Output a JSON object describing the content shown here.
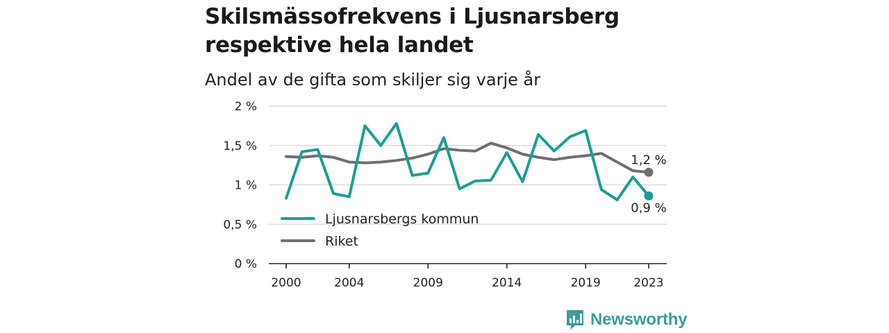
{
  "title": "Skilsmässofrekvens i Ljusnarsberg respektive hela landet",
  "subtitle": "Andel av de gifta som skiljer sig varje år",
  "brand": {
    "name": "Newsworthy",
    "icon": "newsworthy-logo-icon",
    "color": "#3a9e9a"
  },
  "chart_data": {
    "type": "line",
    "title": "Skilsmässofrekvens i Ljusnarsberg respektive hela landet",
    "subtitle": "Andel av de gifta som skiljer sig varje år",
    "ylim": [
      0,
      2
    ],
    "xlim": [
      2000,
      2023
    ],
    "yticks": [
      {
        "value": 0,
        "label": "0 %"
      },
      {
        "value": 0.5,
        "label": "0,5 %"
      },
      {
        "value": 1,
        "label": "1 %"
      },
      {
        "value": 1.5,
        "label": "1,5 %"
      },
      {
        "value": 2,
        "label": "2 %"
      }
    ],
    "xticks": [
      {
        "value": 2000,
        "label": "2000"
      },
      {
        "value": 2004,
        "label": "2004"
      },
      {
        "value": 2009,
        "label": "2009"
      },
      {
        "value": 2014,
        "label": "2014"
      },
      {
        "value": 2019,
        "label": "2019"
      },
      {
        "value": 2023,
        "label": "2023"
      }
    ],
    "grid": true,
    "legend_position": "bottom-left",
    "x": [
      2000,
      2001,
      2002,
      2003,
      2004,
      2005,
      2006,
      2007,
      2008,
      2009,
      2010,
      2011,
      2012,
      2013,
      2014,
      2015,
      2016,
      2017,
      2018,
      2019,
      2020,
      2021,
      2022,
      2023
    ],
    "series": [
      {
        "name": "Ljusnarsbergs kommun",
        "color": "#1a9e96",
        "values": [
          0.83,
          1.42,
          1.45,
          0.89,
          0.85,
          1.75,
          1.5,
          1.78,
          1.12,
          1.15,
          1.6,
          0.95,
          1.05,
          1.06,
          1.41,
          1.04,
          1.64,
          1.43,
          1.61,
          1.69,
          0.94,
          0.81,
          1.1,
          0.86
        ],
        "end_label": "0,9 %"
      },
      {
        "name": "Riket",
        "color": "#6f6e72",
        "values": [
          1.36,
          1.35,
          1.37,
          1.35,
          1.29,
          1.28,
          1.29,
          1.31,
          1.34,
          1.39,
          1.46,
          1.44,
          1.43,
          1.53,
          1.47,
          1.39,
          1.35,
          1.32,
          1.35,
          1.37,
          1.4,
          1.29,
          1.18,
          1.16
        ],
        "end_label": "1,2 %"
      }
    ]
  }
}
